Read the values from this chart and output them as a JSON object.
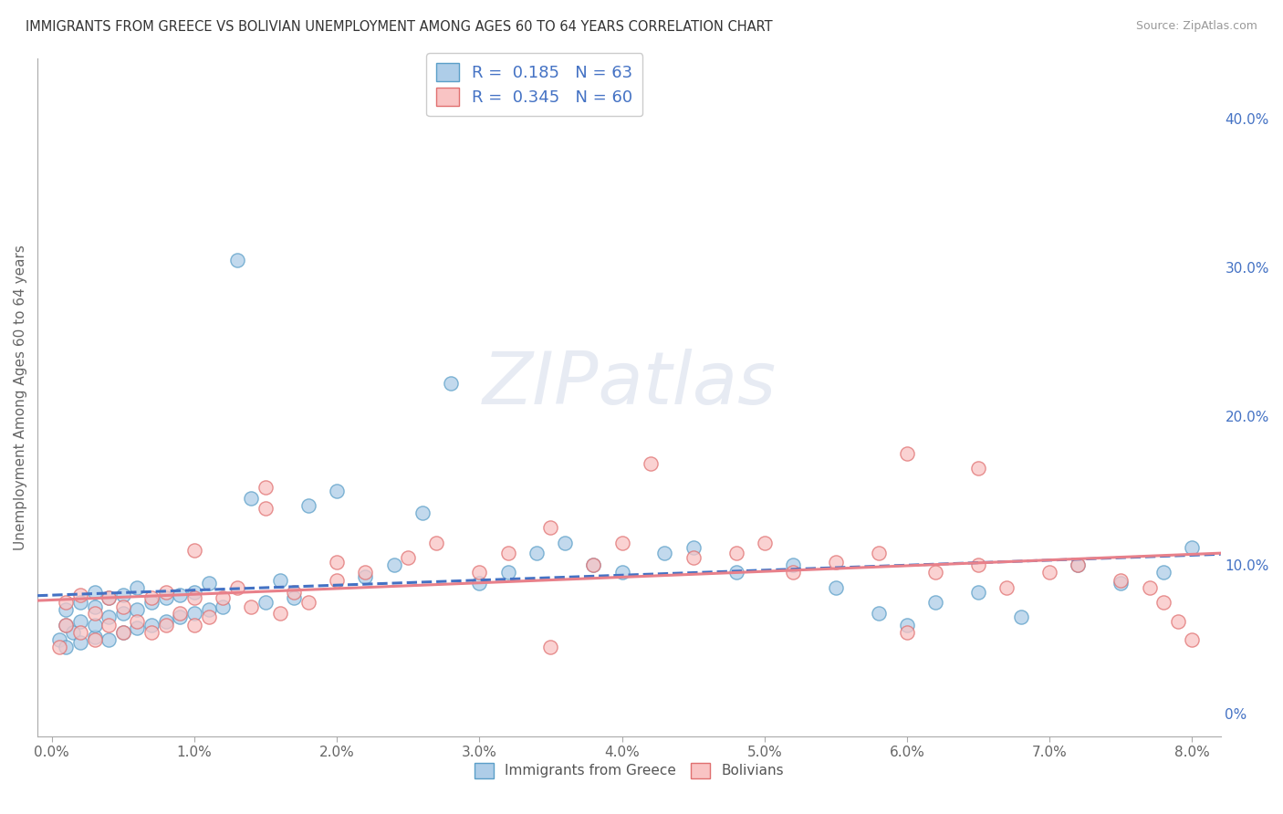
{
  "title": "IMMIGRANTS FROM GREECE VS BOLIVIAN UNEMPLOYMENT AMONG AGES 60 TO 64 YEARS CORRELATION CHART",
  "source": "Source: ZipAtlas.com",
  "ylabel": "Unemployment Among Ages 60 to 64 years",
  "xticklabels": [
    "0.0%",
    "1.0%",
    "2.0%",
    "3.0%",
    "4.0%",
    "5.0%",
    "6.0%",
    "7.0%",
    "8.0%"
  ],
  "xticks": [
    0.0,
    0.01,
    0.02,
    0.03,
    0.04,
    0.05,
    0.06,
    0.07,
    0.08
  ],
  "yticklabels_right": [
    "0%",
    "10.0%",
    "20.0%",
    "30.0%",
    "40.0%"
  ],
  "yticks_right": [
    0.0,
    0.1,
    0.2,
    0.3,
    0.4
  ],
  "xlim": [
    -0.001,
    0.082
  ],
  "ylim": [
    -0.015,
    0.44
  ],
  "legend1_label_r": "R = ",
  "legend1_label_rv": "0.185",
  "legend1_label_n": "  N = ",
  "legend1_label_nv": "63",
  "legend2_label_r": "R = ",
  "legend2_label_rv": "0.345",
  "legend2_label_n": "  N = ",
  "legend2_label_nv": "60",
  "scatter1_face": "#aecde8",
  "scatter1_edge": "#5b9fc8",
  "scatter2_face": "#f9c4c4",
  "scatter2_edge": "#e07070",
  "trend1_color": "#4472c4",
  "trend2_color": "#e8808a",
  "background_color": "#ffffff",
  "grid_color": "#cccccc",
  "watermark_text": "ZIPatlas",
  "bottom_legend1": "Immigrants from Greece",
  "bottom_legend2": "Bolivians",
  "blue_x": [
    0.0005,
    0.001,
    0.001,
    0.001,
    0.0015,
    0.002,
    0.002,
    0.002,
    0.003,
    0.003,
    0.003,
    0.003,
    0.004,
    0.004,
    0.004,
    0.005,
    0.005,
    0.005,
    0.006,
    0.006,
    0.006,
    0.007,
    0.007,
    0.008,
    0.008,
    0.009,
    0.009,
    0.01,
    0.01,
    0.011,
    0.011,
    0.012,
    0.013,
    0.014,
    0.015,
    0.016,
    0.017,
    0.018,
    0.02,
    0.022,
    0.024,
    0.026,
    0.028,
    0.03,
    0.032,
    0.034,
    0.036,
    0.038,
    0.04,
    0.043,
    0.045,
    0.048,
    0.052,
    0.055,
    0.058,
    0.06,
    0.062,
    0.065,
    0.068,
    0.072,
    0.075,
    0.078,
    0.08
  ],
  "blue_y": [
    0.05,
    0.045,
    0.06,
    0.07,
    0.055,
    0.048,
    0.062,
    0.075,
    0.052,
    0.06,
    0.072,
    0.082,
    0.05,
    0.065,
    0.078,
    0.055,
    0.068,
    0.08,
    0.058,
    0.07,
    0.085,
    0.06,
    0.075,
    0.062,
    0.078,
    0.065,
    0.08,
    0.068,
    0.082,
    0.07,
    0.088,
    0.072,
    0.305,
    0.145,
    0.075,
    0.09,
    0.078,
    0.14,
    0.15,
    0.092,
    0.1,
    0.135,
    0.222,
    0.088,
    0.095,
    0.108,
    0.115,
    0.1,
    0.095,
    0.108,
    0.112,
    0.095,
    0.1,
    0.085,
    0.068,
    0.06,
    0.075,
    0.082,
    0.065,
    0.1,
    0.088,
    0.095,
    0.112
  ],
  "pink_x": [
    0.0005,
    0.001,
    0.001,
    0.002,
    0.002,
    0.003,
    0.003,
    0.004,
    0.004,
    0.005,
    0.005,
    0.006,
    0.007,
    0.007,
    0.008,
    0.008,
    0.009,
    0.01,
    0.01,
    0.011,
    0.012,
    0.013,
    0.014,
    0.015,
    0.016,
    0.017,
    0.018,
    0.02,
    0.022,
    0.025,
    0.027,
    0.03,
    0.032,
    0.035,
    0.038,
    0.04,
    0.042,
    0.045,
    0.048,
    0.05,
    0.052,
    0.055,
    0.058,
    0.06,
    0.062,
    0.065,
    0.067,
    0.07,
    0.072,
    0.075,
    0.077,
    0.078,
    0.079,
    0.08,
    0.06,
    0.065,
    0.01,
    0.015,
    0.02,
    0.035
  ],
  "pink_y": [
    0.045,
    0.06,
    0.075,
    0.055,
    0.08,
    0.05,
    0.068,
    0.06,
    0.078,
    0.055,
    0.072,
    0.062,
    0.055,
    0.078,
    0.06,
    0.082,
    0.068,
    0.06,
    0.078,
    0.065,
    0.078,
    0.085,
    0.072,
    0.152,
    0.068,
    0.082,
    0.075,
    0.09,
    0.095,
    0.105,
    0.115,
    0.095,
    0.108,
    0.125,
    0.1,
    0.115,
    0.168,
    0.105,
    0.108,
    0.115,
    0.095,
    0.102,
    0.108,
    0.175,
    0.095,
    0.165,
    0.085,
    0.095,
    0.1,
    0.09,
    0.085,
    0.075,
    0.062,
    0.05,
    0.055,
    0.1,
    0.11,
    0.138,
    0.102,
    0.045
  ]
}
